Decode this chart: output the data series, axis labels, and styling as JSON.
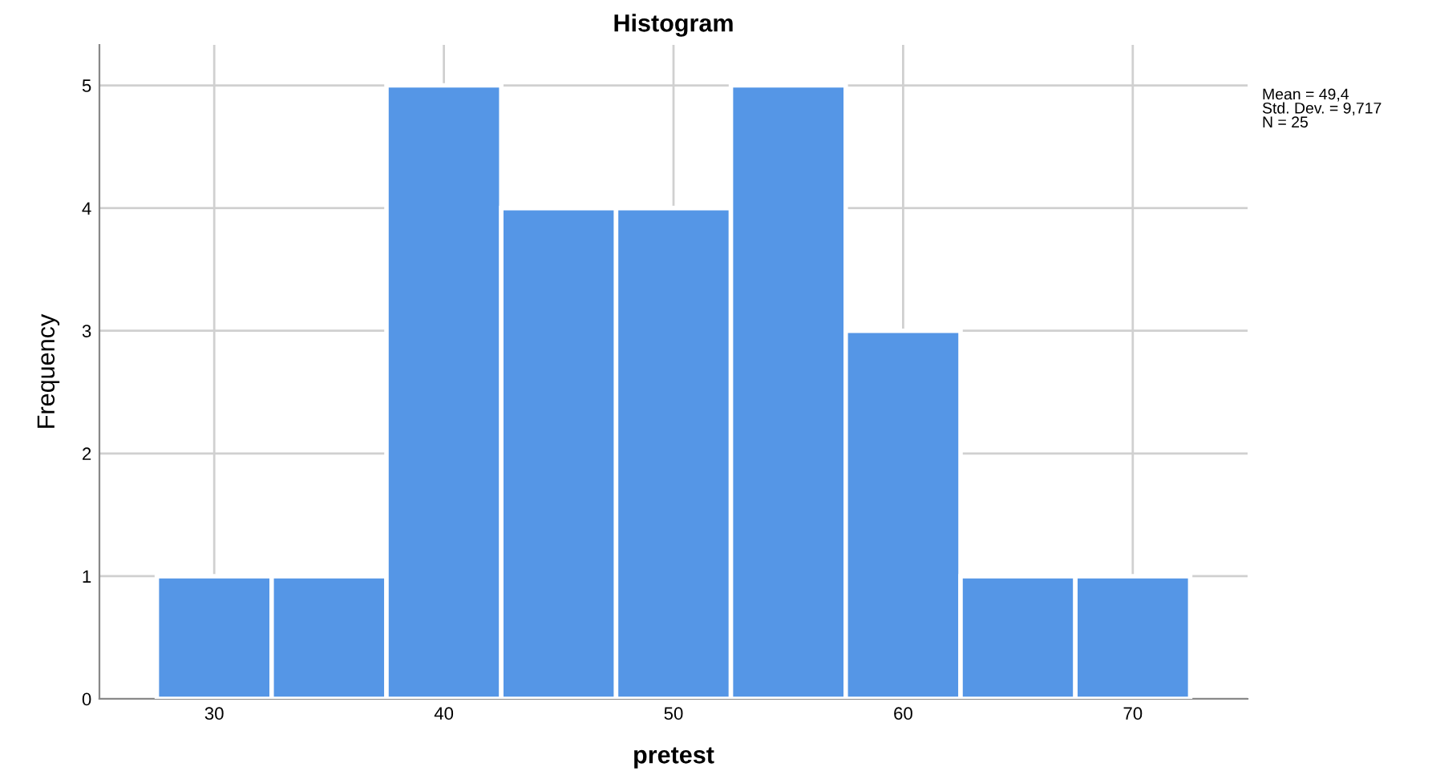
{
  "chart_data": {
    "type": "histogram",
    "title": "Histogram",
    "xlabel": "pretest",
    "ylabel": "Frequency",
    "bins": [
      27.5,
      32.5,
      37.5,
      42.5,
      47.5,
      52.5,
      57.5,
      62.5,
      67.5,
      72.5
    ],
    "values": [
      1,
      1,
      5,
      4,
      4,
      5,
      3,
      1,
      1
    ],
    "color": "#5596e6",
    "xlim": [
      25,
      75
    ],
    "xticks": [
      30,
      40,
      50,
      60,
      70
    ],
    "ylim": [
      0,
      5.33
    ],
    "yticks": [
      0,
      1,
      2,
      3,
      4,
      5
    ],
    "grid": true,
    "annotations": [
      "Mean = 49,4\nStd. Dev. = 9,717\nN = 25"
    ]
  }
}
